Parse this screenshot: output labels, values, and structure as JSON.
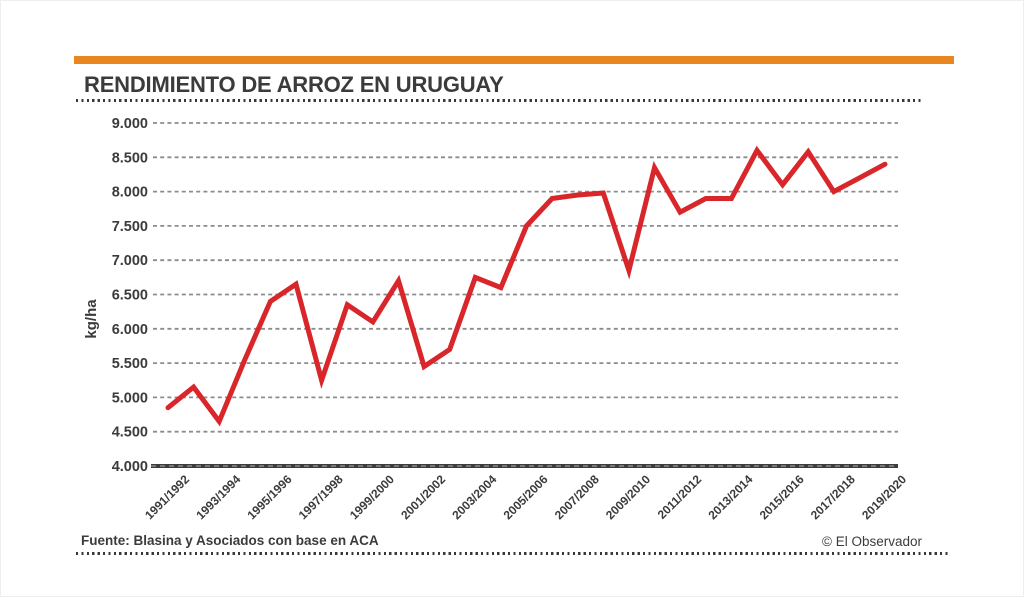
{
  "header": {
    "title": "RENDIMIENTO DE ARROZ EN URUGUAY"
  },
  "footer": {
    "source": "Fuente: Blasina y Asociados con base en ACA",
    "copyright": "© El Observador"
  },
  "theme": {
    "accent_orange": "#E8871F",
    "line_red": "#D8262A",
    "text_dark": "#3B3B3B",
    "grid_gray": "#8C8C8C",
    "axis_dark": "#3D3D3D"
  },
  "chart_data": {
    "type": "line",
    "title": "RENDIMIENTO DE ARROZ EN URUGUAY",
    "xlabel": "",
    "ylabel": "kg/ha",
    "ylim": [
      4000,
      9000
    ],
    "y_tick_values": [
      9000,
      8500,
      8000,
      7500,
      7000,
      6500,
      6000,
      5500,
      5000,
      4500,
      4000
    ],
    "y_tick_labels": [
      "9.000",
      "8.500",
      "8.000",
      "7.500",
      "7.000",
      "6.500",
      "6.000",
      "5.500",
      "5.000",
      "4.500",
      "4.000"
    ],
    "grid": "horizontal-dashed",
    "legend": "none",
    "categories": [
      "1991/1992",
      "1992/1993",
      "1993/1994",
      "1994/1995",
      "1995/1996",
      "1996/1997",
      "1997/1998",
      "1998/1999",
      "1999/2000",
      "2000/2001",
      "2001/2002",
      "2002/2003",
      "2003/2004",
      "2004/2005",
      "2005/2006",
      "2006/2007",
      "2007/2008",
      "2008/2009",
      "2009/2010",
      "2010/2011",
      "2011/2012",
      "2012/2013",
      "2013/2014",
      "2014/2015",
      "2015/2016",
      "2016/2017",
      "2017/2018",
      "2018/2019",
      "2019/2020"
    ],
    "x_tick_labels": [
      "1991/1992",
      "1993/1994",
      "1995/1996",
      "1997/1998",
      "1999/2000",
      "2001/2002",
      "2003/2004",
      "2005/2006",
      "2007/2008",
      "2009/2010",
      "2011/2012",
      "2013/2014",
      "2015/2016",
      "2017/2018",
      "2019/2020"
    ],
    "series": [
      {
        "name": "Rendimiento de arroz (kg/ha)",
        "values": [
          4850,
          5150,
          4650,
          5550,
          6400,
          6650,
          5250,
          6350,
          6100,
          6700,
          5450,
          5700,
          6750,
          6600,
          7500,
          7900,
          7950,
          7980,
          6850,
          8350,
          7700,
          7900,
          7900,
          8600,
          8100,
          8580,
          8000,
          8200,
          8400
        ]
      }
    ]
  }
}
